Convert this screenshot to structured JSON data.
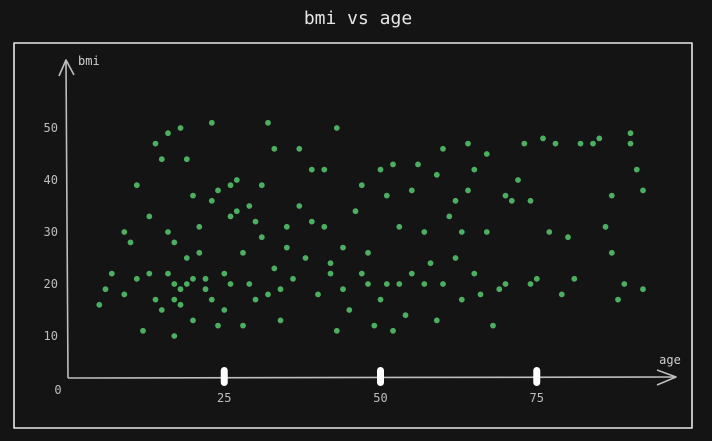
{
  "chart_data": {
    "type": "scatter",
    "title": "bmi vs age",
    "xlabel": "age",
    "ylabel": "bmi",
    "origin_label": "0",
    "xlim": [
      0,
      100
    ],
    "ylim": [
      0,
      60
    ],
    "xticks": [
      25,
      50,
      75
    ],
    "yticks": [
      10,
      20,
      30,
      40,
      50
    ],
    "grid": false,
    "colors": {
      "background": "#141414",
      "frame": "#e8e8e8",
      "axis": "#bdbdbd",
      "label": "#cfcfcf",
      "tick_text": "#bdbdbd",
      "tick_mark": "#ffffff",
      "point": "#4caf60"
    },
    "series": [
      {
        "name": "bmi",
        "x": [
          5,
          6,
          7,
          9,
          9,
          10,
          11,
          11,
          12,
          13,
          13,
          14,
          14,
          15,
          15,
          16,
          16,
          16,
          17,
          17,
          17,
          17,
          18,
          18,
          18,
          19,
          19,
          19,
          20,
          20,
          20,
          21,
          21,
          22,
          22,
          23,
          23,
          23,
          24,
          24,
          25,
          25,
          26,
          26,
          26,
          27,
          27,
          28,
          28,
          29,
          29,
          30,
          30,
          31,
          31,
          32,
          32,
          33,
          33,
          34,
          34,
          35,
          35,
          36,
          37,
          37,
          38,
          39,
          39,
          40,
          41,
          41,
          42,
          42,
          43,
          43,
          44,
          44,
          45,
          46,
          47,
          47,
          48,
          48,
          49,
          50,
          50,
          51,
          51,
          52,
          52,
          53,
          53,
          54,
          55,
          55,
          56,
          57,
          57,
          58,
          59,
          59,
          60,
          60,
          61,
          62,
          62,
          63,
          63,
          64,
          64,
          65,
          65,
          66,
          67,
          67,
          68,
          69,
          70,
          70,
          71,
          72,
          73,
          74,
          74,
          75,
          76,
          77,
          78,
          79,
          80,
          81,
          82,
          84,
          85,
          86,
          87,
          87,
          88,
          89,
          90,
          90,
          91,
          92,
          92
        ],
        "y": [
          16,
          19,
          22,
          30,
          18,
          28,
          39,
          21,
          11,
          22,
          33,
          47,
          17,
          44,
          15,
          30,
          22,
          49,
          28,
          20,
          17,
          10,
          50,
          16,
          19,
          20,
          25,
          44,
          37,
          21,
          13,
          26,
          31,
          19,
          21,
          51,
          36,
          17,
          12,
          38,
          15,
          22,
          20,
          33,
          39,
          34,
          40,
          26,
          12,
          35,
          20,
          32,
          17,
          39,
          29,
          51,
          18,
          23,
          46,
          19,
          13,
          31,
          27,
          21,
          46,
          35,
          25,
          42,
          32,
          18,
          31,
          42,
          24,
          22,
          11,
          50,
          27,
          19,
          15,
          34,
          22,
          39,
          20,
          26,
          12,
          42,
          17,
          37,
          20,
          11,
          43,
          20,
          31,
          14,
          22,
          38,
          43,
          20,
          30,
          24,
          13,
          41,
          46,
          20,
          33,
          36,
          25,
          30,
          17,
          38,
          47,
          22,
          42,
          18,
          45,
          30,
          12,
          19,
          20,
          37,
          36,
          40,
          47,
          20,
          36,
          21,
          48,
          30,
          47,
          18,
          29,
          21,
          47,
          47,
          48,
          31,
          37,
          26,
          17,
          20,
          49,
          47,
          42,
          38,
          19
        ]
      }
    ]
  }
}
